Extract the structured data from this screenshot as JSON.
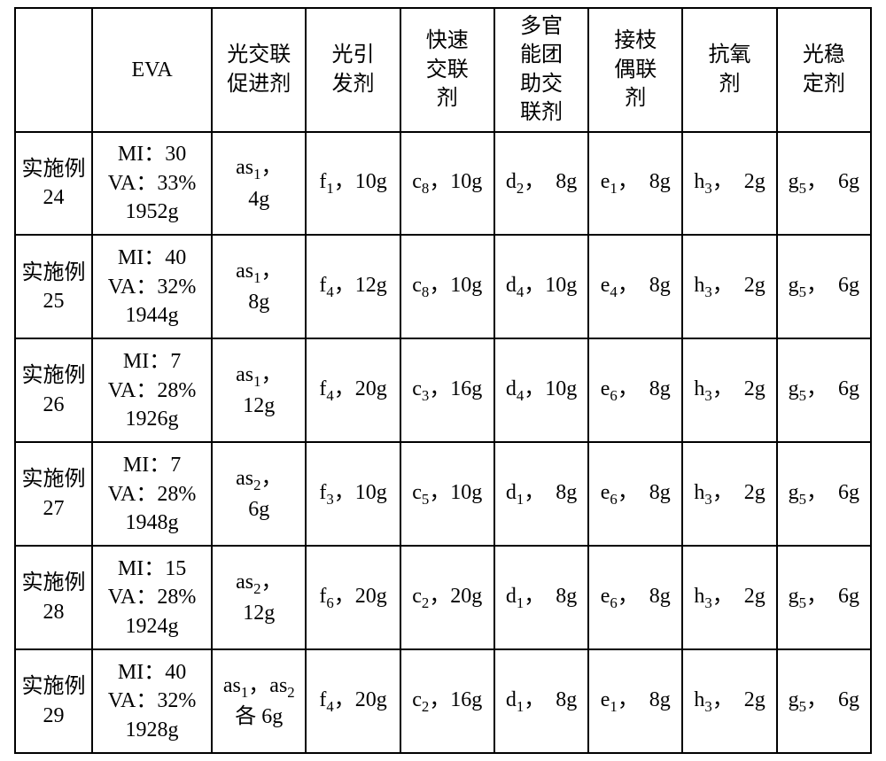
{
  "table": {
    "background_color": "#ffffff",
    "border_color": "#000000",
    "text_color": "#000000",
    "font_size_pt": 18,
    "columns": [
      {
        "key": "label",
        "header": ""
      },
      {
        "key": "eva",
        "header": "EVA"
      },
      {
        "key": "promoter",
        "header": "光交联\n促进剂"
      },
      {
        "key": "initiator",
        "header": "光引\n发剂"
      },
      {
        "key": "fastxl",
        "header": "快速\n交联\n剂"
      },
      {
        "key": "coagent",
        "header": "多官\n能团\n助交\n联剂"
      },
      {
        "key": "coupling",
        "header": "接枝\n偶联\n剂"
      },
      {
        "key": "antiox",
        "header": "抗氧\n剂"
      },
      {
        "key": "lightstab",
        "header": "光稳\n定剂"
      }
    ],
    "rows": [
      {
        "label": "实施例\n24",
        "eva": "MI：30\nVA：33%\n1952g",
        "promoter": {
          "code": "as",
          "sub": "1",
          "qty": "4g",
          "sep": "，\n"
        },
        "initiator": {
          "code": "f",
          "sub": "1",
          "qty": "10g",
          "sep": "，"
        },
        "fastxl": {
          "code": "c",
          "sub": "8",
          "qty": "10g",
          "sep": "，"
        },
        "coagent": {
          "code": "d",
          "sub": "2",
          "qty": "8g",
          "sep": "，　"
        },
        "coupling": {
          "code": "e",
          "sub": "1",
          "qty": "8g",
          "sep": "，　"
        },
        "antiox": {
          "code": "h",
          "sub": "3",
          "qty": "2g",
          "sep": "，　"
        },
        "lightstab": {
          "code": "g",
          "sub": "5",
          "qty": "6g",
          "sep": "，　"
        }
      },
      {
        "label": "实施例\n25",
        "eva": "MI：40\nVA：32%\n1944g",
        "promoter": {
          "code": "as",
          "sub": "1",
          "qty": "8g",
          "sep": "，\n"
        },
        "initiator": {
          "code": "f",
          "sub": "4",
          "qty": "12g",
          "sep": "，"
        },
        "fastxl": {
          "code": "c",
          "sub": "8",
          "qty": "10g",
          "sep": "，"
        },
        "coagent": {
          "code": "d",
          "sub": "4",
          "qty": "10g",
          "sep": "，"
        },
        "coupling": {
          "code": "e",
          "sub": "4",
          "qty": "8g",
          "sep": "，　"
        },
        "antiox": {
          "code": "h",
          "sub": "3",
          "qty": "2g",
          "sep": "，　"
        },
        "lightstab": {
          "code": "g",
          "sub": "5",
          "qty": "6g",
          "sep": "，　"
        }
      },
      {
        "label": "实施例\n26",
        "eva": "MI：7\nVA：28%\n1926g",
        "promoter": {
          "code": "as",
          "sub": "1",
          "qty": "12g",
          "sep": "，\n"
        },
        "initiator": {
          "code": "f",
          "sub": "4",
          "qty": "20g",
          "sep": "，"
        },
        "fastxl": {
          "code": "c",
          "sub": "3",
          "qty": "16g",
          "sep": "，"
        },
        "coagent": {
          "code": "d",
          "sub": "4",
          "qty": "10g",
          "sep": "，"
        },
        "coupling": {
          "code": "e",
          "sub": "6",
          "qty": "8g",
          "sep": "，　"
        },
        "antiox": {
          "code": "h",
          "sub": "3",
          "qty": "2g",
          "sep": "，　"
        },
        "lightstab": {
          "code": "g",
          "sub": "5",
          "qty": "6g",
          "sep": "，　"
        }
      },
      {
        "label": "实施例\n27",
        "eva": "MI：7\nVA：28%\n1948g",
        "promoter": {
          "code": "as",
          "sub": "2",
          "qty": "6g",
          "sep": "，\n"
        },
        "initiator": {
          "code": "f",
          "sub": "3",
          "qty": "10g",
          "sep": "，"
        },
        "fastxl": {
          "code": "c",
          "sub": "5",
          "qty": "10g",
          "sep": "，"
        },
        "coagent": {
          "code": "d",
          "sub": "1",
          "qty": "8g",
          "sep": "，　"
        },
        "coupling": {
          "code": "e",
          "sub": "6",
          "qty": "8g",
          "sep": "，　"
        },
        "antiox": {
          "code": "h",
          "sub": "3",
          "qty": "2g",
          "sep": "，　"
        },
        "lightstab": {
          "code": "g",
          "sub": "5",
          "qty": "6g",
          "sep": "，　"
        }
      },
      {
        "label": "实施例\n28",
        "eva": "MI：15\nVA：28%\n1924g",
        "promoter": {
          "code": "as",
          "sub": "2",
          "qty": "12g",
          "sep": "，\n"
        },
        "initiator": {
          "code": "f",
          "sub": "6",
          "qty": "20g",
          "sep": "，"
        },
        "fastxl": {
          "code": "c",
          "sub": "2",
          "qty": "20g",
          "sep": "，"
        },
        "coagent": {
          "code": "d",
          "sub": "1",
          "qty": "8g",
          "sep": "，　"
        },
        "coupling": {
          "code": "e",
          "sub": "6",
          "qty": "8g",
          "sep": "，　"
        },
        "antiox": {
          "code": "h",
          "sub": "3",
          "qty": "2g",
          "sep": "，　"
        },
        "lightstab": {
          "code": "g",
          "sub": "5",
          "qty": "6g",
          "sep": "，　"
        }
      },
      {
        "label": "实施例\n29",
        "eva": "MI：40\nVA：32%\n1928g",
        "promoter": {
          "raw_html": "as<sub>1</sub>，as<sub>2</sub><br>各 6g"
        },
        "initiator": {
          "code": "f",
          "sub": "4",
          "qty": "20g",
          "sep": "，"
        },
        "fastxl": {
          "code": "c",
          "sub": "2",
          "qty": "16g",
          "sep": "，"
        },
        "coagent": {
          "code": "d",
          "sub": "1",
          "qty": "8g",
          "sep": "，　"
        },
        "coupling": {
          "code": "e",
          "sub": "1",
          "qty": "8g",
          "sep": "，　"
        },
        "antiox": {
          "code": "h",
          "sub": "3",
          "qty": "2g",
          "sep": "，　"
        },
        "lightstab": {
          "code": "g",
          "sub": "5",
          "qty": "6g",
          "sep": "，　"
        }
      }
    ]
  }
}
